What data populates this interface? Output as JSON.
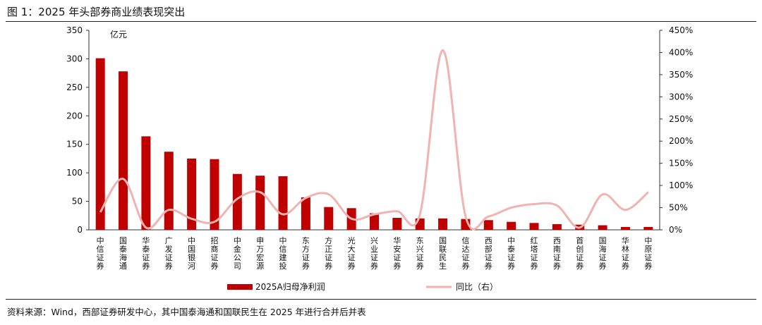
{
  "figure": {
    "title": "图 1：2025 年头部券商业绩表现突出",
    "source": "资料来源：Wind，西部证券研发中心，其中国泰海通和国联民生在 2025 年进行合并后并表"
  },
  "colors": {
    "bar": "#c00000",
    "line": "#f0b3b0",
    "text": "#111111"
  },
  "chart_data": {
    "type": "bar",
    "unit_label": "亿元",
    "categories": [
      "中信证券",
      "国泰海通",
      "华泰证券",
      "广发证券",
      "中国银河",
      "招商证券",
      "中金公司",
      "申万宏源",
      "中信建投",
      "东方证券",
      "方正证券",
      "光大证券",
      "兴业证券",
      "华安证券",
      "东兴证券",
      "国联民生",
      "信达证券",
      "西部证券",
      "中泰证券",
      "红塔证券",
      "西南证券",
      "首创证券",
      "国海证券",
      "华林证券",
      "中原证券"
    ],
    "series": [
      {
        "name": "2025A归母净利润",
        "type": "bar",
        "axis": "left",
        "values": [
          301,
          278,
          164,
          137,
          125,
          124,
          98,
          95,
          94,
          57,
          40,
          38,
          29,
          21,
          20,
          20,
          19,
          17,
          14,
          12,
          10,
          9,
          8,
          5,
          5
        ]
      },
      {
        "name": "同比（右）",
        "type": "line",
        "axis": "right",
        "values": [
          40,
          115,
          5,
          45,
          25,
          18,
          70,
          85,
          35,
          72,
          80,
          25,
          35,
          42,
          35,
          405,
          30,
          30,
          50,
          58,
          55,
          5,
          80,
          45,
          85
        ]
      }
    ],
    "y_left": {
      "min": 0,
      "max": 350,
      "ticks": [
        0,
        50,
        100,
        150,
        200,
        250,
        300,
        350
      ]
    },
    "y_right": {
      "min": 0,
      "max": 450,
      "ticks": [
        "0%",
        "50%",
        "100%",
        "150%",
        "200%",
        "250%",
        "300%",
        "350%",
        "400%",
        "450%"
      ]
    },
    "legend_position": "bottom",
    "grid": false
  }
}
